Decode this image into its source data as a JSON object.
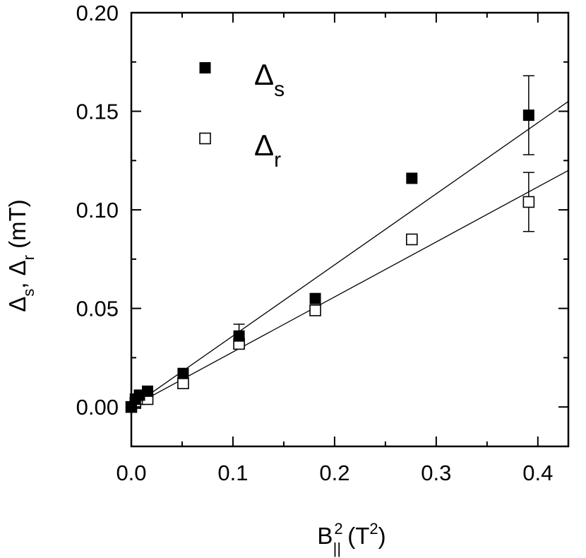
{
  "chart_data": {
    "type": "scatter",
    "xlabel": {
      "main": "B",
      "sup": "2",
      "sub": "||",
      "unit_open": " (T",
      "unit_sup": "2",
      "unit_close": ")"
    },
    "ylabel": {
      "d1": "Δ",
      "s1": "s",
      "sep": ", ",
      "d2": "Δ",
      "s2": "r",
      "unit": " (mT)"
    },
    "xlim": [
      0.0,
      0.43
    ],
    "ylim": [
      -0.02,
      0.2
    ],
    "xticks": [
      0.0,
      0.1,
      0.2,
      0.3,
      0.4
    ],
    "xtick_labels": [
      "0.0",
      "0.1",
      "0.2",
      "0.3",
      "0.4"
    ],
    "yticks": [
      0.0,
      0.05,
      0.1,
      0.15,
      0.2
    ],
    "ytick_labels": [
      "0.00",
      "0.05",
      "0.10",
      "0.15",
      "0.20"
    ],
    "grid": false,
    "legend_position": "top-left",
    "series": [
      {
        "name": "Δs",
        "legend_main": "Δ",
        "legend_sub": "s",
        "marker": "filled-square",
        "color": "#000000",
        "x": [
          0.0,
          0.004,
          0.008,
          0.016,
          0.051,
          0.106,
          0.181,
          0.276,
          0.391
        ],
        "y": [
          0.0,
          0.004,
          0.006,
          0.008,
          0.017,
          0.036,
          0.055,
          0.116,
          0.148
        ],
        "error_bars": [
          {
            "x": 0.106,
            "y": 0.036,
            "err": 0.006
          },
          {
            "x": 0.391,
            "y": 0.148,
            "err": 0.02
          }
        ],
        "fit_line": {
          "x": [
            0.0,
            0.43
          ],
          "y": [
            0.0,
            0.155
          ]
        }
      },
      {
        "name": "Δr",
        "legend_main": "Δ",
        "legend_sub": "r",
        "marker": "open-square",
        "color": "#000000",
        "x": [
          0.0,
          0.004,
          0.008,
          0.016,
          0.051,
          0.106,
          0.181,
          0.276,
          0.391
        ],
        "y": [
          0.0,
          0.002,
          0.004,
          0.004,
          0.012,
          0.032,
          0.049,
          0.085,
          0.104
        ],
        "error_bars": [
          {
            "x": 0.391,
            "y": 0.104,
            "err": 0.015
          }
        ],
        "fit_line": {
          "x": [
            0.0,
            0.43
          ],
          "y": [
            0.0,
            0.12
          ]
        }
      }
    ]
  }
}
